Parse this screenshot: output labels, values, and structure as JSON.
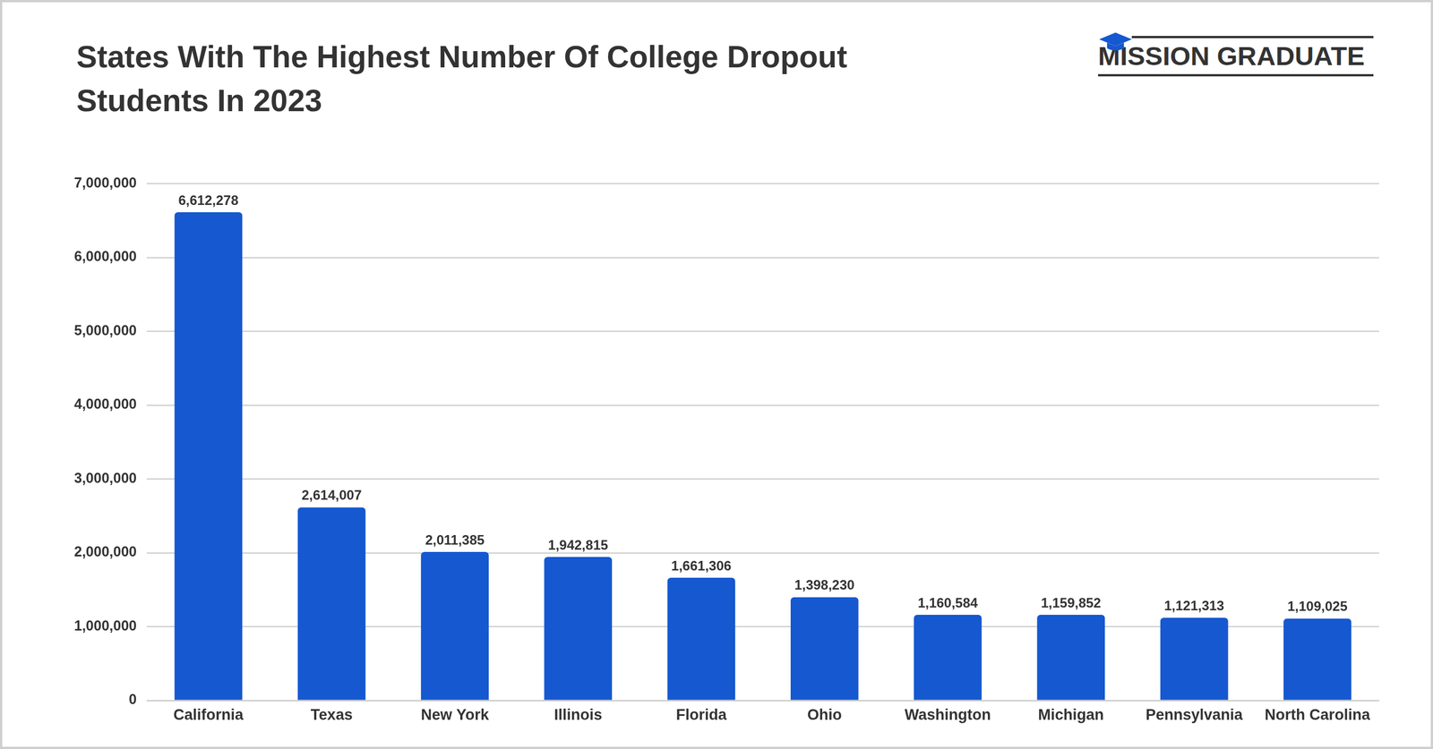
{
  "chart_data": {
    "type": "bar",
    "title": "States With The Highest Number Of College Dropout Students In 2023",
    "annotation": "MISSION GRADUATE",
    "categories": [
      "California",
      "Texas",
      "New York",
      "Illinois",
      "Florida",
      "Ohio",
      "Washington",
      "Michigan",
      "Pennsylvania",
      "North Carolina"
    ],
    "values": [
      6612278,
      2614007,
      2011385,
      1942815,
      1661306,
      1398230,
      1160584,
      1159852,
      1121313,
      1109025
    ],
    "value_labels": [
      "6,612,278",
      "2,614,007",
      "2,011,385",
      "1,942,815",
      "1,661,306",
      "1,398,230",
      "1,160,584",
      "1,159,852",
      "1,121,313",
      "1,109,025"
    ],
    "data_labels": true,
    "color": "#1558d0",
    "ylim": [
      0,
      7000000
    ],
    "yticks": [
      0,
      {
        "value": 1000000,
        "label": "1,000,000"
      },
      {
        "value": 2000000,
        "label": "2,000,000"
      },
      {
        "value": 3000000,
        "label": "3,000,000"
      },
      {
        "value": 4000000,
        "label": "4,000,000"
      },
      {
        "value": 5000000,
        "label": "5,000,000"
      },
      {
        "value": 6000000,
        "label": "6,000,000"
      },
      {
        "value": 7000000,
        "label": "7,000,000"
      }
    ],
    "grid": true
  }
}
